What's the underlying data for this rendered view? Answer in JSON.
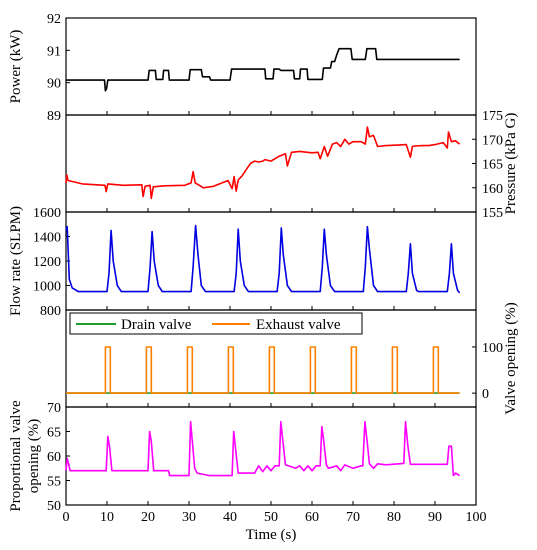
{
  "chart_data": {
    "type": "line",
    "xlabel": "Time (s)",
    "x_ticks": [
      "0",
      "10",
      "20",
      "30",
      "40",
      "50",
      "60",
      "70",
      "80",
      "90",
      "100"
    ],
    "xlim": [
      0,
      100
    ],
    "panels": [
      {
        "id": "power",
        "ylabel": "Power  (kW)",
        "y_axis_side": "left",
        "ylim": [
          89,
          92
        ],
        "y_ticks": [
          "89",
          "90",
          "91",
          "92"
        ],
        "series": [
          {
            "color": "#000000",
            "x": [
              0,
              9.4,
              9.6,
              9.9,
              10.2,
              20,
              20.3,
              21.8,
              22,
              23.6,
              23.8,
              25,
              25.2,
              30,
              30.3,
              33,
              33.3,
              35,
              35.3,
              40,
              40.4,
              46,
              46.3,
              48.5,
              48.7,
              50.5,
              50.7,
              52,
              52.4,
              55.5,
              55.7,
              57,
              57.2,
              58.8,
              59,
              61,
              61.2,
              62.5,
              62.8,
              64.5,
              64.8,
              65.5,
              66,
              66.6,
              67,
              69.5,
              69.8,
              73,
              73.4,
              75.5,
              75.8,
              80,
              85,
              90,
              96
            ],
            "y": [
              90.08,
              90.08,
              89.75,
              89.82,
              90.08,
              90.08,
              90.38,
              90.38,
              90.1,
              90.1,
              90.38,
              90.38,
              90.08,
              90.08,
              90.4,
              90.4,
              90.18,
              90.18,
              90.08,
              90.08,
              90.42,
              90.42,
              90.42,
              90.42,
              90.12,
              90.12,
              90.42,
              90.42,
              90.38,
              90.38,
              90.12,
              90.12,
              90.42,
              90.42,
              90.1,
              90.1,
              90.1,
              90.1,
              90.45,
              90.45,
              90.65,
              90.65,
              90.85,
              91.05,
              91.05,
              91.05,
              90.72,
              90.72,
              91.05,
              91.05,
              90.72,
              90.72,
              90.72,
              90.72,
              90.72
            ]
          }
        ]
      },
      {
        "id": "pressure",
        "ylabel": "Pressure  (kPa G)",
        "y_axis_side": "right",
        "ylim": [
          155,
          175
        ],
        "y_ticks": [
          "155",
          "160",
          "165",
          "170",
          "175"
        ],
        "series": [
          {
            "color": "#ff0000",
            "x": [
              0,
              0.2,
              0.5,
              4,
              9.5,
              9.8,
              10.2,
              14,
              18.5,
              18.8,
              19.3,
              20.5,
              20.8,
              21.3,
              24,
              29,
              30.5,
              31,
              31.5,
              32.5,
              33.5,
              36,
              39.5,
              40.5,
              41,
              41.5,
              42,
              43,
              44,
              45,
              46,
              47,
              48,
              48.5,
              50,
              52,
              53.5,
              54,
              55,
              57,
              60,
              61.5,
              62,
              63,
              63.8,
              65,
              66,
              67,
              68,
              69,
              70,
              72,
              73,
              73.5,
              74,
              75,
              76,
              78,
              81,
              83,
              84,
              84.5,
              85,
              87,
              88.5,
              90,
              92,
              93,
              93.3,
              94,
              95,
              96
            ],
            "y": [
              161,
              162.6,
              161.5,
              160.8,
              160.5,
              159.2,
              160.8,
              160.5,
              160.6,
              158.2,
              160.3,
              160.5,
              157.8,
              160.2,
              160.4,
              160.5,
              161,
              163.3,
              161,
              160.5,
              160,
              160.3,
              161.5,
              159.8,
              162.3,
              159.3,
              161.6,
              162.5,
              163.8,
              165,
              165.5,
              165.3,
              165.5,
              165.8,
              165.5,
              166.5,
              167,
              164.5,
              167.3,
              167.5,
              167.2,
              167.3,
              166,
              168.5,
              166.5,
              169,
              169.3,
              168.5,
              170,
              169,
              169.5,
              169.5,
              169,
              172.5,
              170.5,
              170.8,
              168.5,
              168.7,
              168.8,
              168.9,
              166.3,
              168.5,
              168.6,
              168.7,
              168.7,
              168.9,
              169.3,
              168.2,
              171.5,
              169.5,
              169.7,
              169
            ]
          }
        ]
      },
      {
        "id": "flow",
        "ylabel": "Flow rate  (SLPM)",
        "y_axis_side": "left",
        "ylim": [
          800,
          1600
        ],
        "y_ticks": [
          "800",
          "1000",
          "1200",
          "1400",
          "1600"
        ],
        "series": [
          {
            "color": "#0000e0",
            "x": [
              0,
              0.3,
              0.8,
              1.5,
              3,
              10,
              10.5,
              11,
              11.5,
              12.5,
              13.5,
              20,
              20.5,
              21,
              21.5,
              22.5,
              23.5,
              30.5,
              31,
              31.6,
              32.2,
              33,
              34,
              41,
              41.5,
              42,
              42.5,
              43.5,
              44.5,
              51.5,
              52,
              52.5,
              53,
              54,
              55,
              62,
              62.5,
              63,
              63.5,
              64.5,
              65.5,
              72.5,
              73,
              73.5,
              74,
              75,
              76,
              83,
              83.5,
              84,
              84.5,
              85.5,
              86,
              93,
              93.5,
              94,
              94.5,
              95.5,
              96
            ],
            "y": [
              1450,
              1480,
              1050,
              980,
              950,
              950,
              1100,
              1450,
              1200,
              1000,
              950,
              950,
              1150,
              1440,
              1200,
              1000,
              950,
              950,
              1150,
              1490,
              1250,
              1000,
              950,
              950,
              1100,
              1460,
              1200,
              1000,
              950,
              950,
              1100,
              1470,
              1250,
              1000,
              950,
              950,
              1150,
              1460,
              1250,
              1000,
              950,
              950,
              1150,
              1480,
              1300,
              1000,
              950,
              950,
              1100,
              1340,
              1100,
              960,
              950,
              950,
              1100,
              1340,
              1100,
              960,
              940
            ]
          }
        ]
      },
      {
        "id": "valve",
        "ylabel": "Valve opening  (%)",
        "y_axis_side": "right",
        "ylim": [
          -30,
          180
        ],
        "y_ticks": [
          "0",
          "100"
        ],
        "legend": [
          "Drain valve",
          "Exhaust valve"
        ],
        "legend_position": "top",
        "series": [
          {
            "name": "Drain valve",
            "color": "#1f9d2a",
            "x": [
              0,
              96
            ],
            "y": [
              0,
              0
            ]
          },
          {
            "name": "Exhaust valve",
            "color": "#ff8000",
            "x": [
              0,
              9.6,
              9.6,
              10.8,
              10.8,
              19.6,
              19.6,
              20.8,
              20.8,
              29.6,
              29.6,
              30.8,
              30.8,
              39.6,
              39.6,
              40.8,
              40.8,
              49.6,
              49.6,
              50.8,
              50.8,
              59.6,
              59.6,
              60.8,
              60.8,
              69.6,
              69.6,
              70.8,
              70.8,
              79.6,
              79.6,
              80.8,
              80.8,
              89.6,
              89.6,
              90.8,
              90.8,
              96
            ],
            "y": [
              0,
              0,
              100,
              100,
              0,
              0,
              100,
              100,
              0,
              0,
              100,
              100,
              0,
              0,
              100,
              100,
              0,
              0,
              100,
              100,
              0,
              0,
              100,
              100,
              0,
              0,
              100,
              100,
              0,
              0,
              100,
              100,
              0,
              0,
              100,
              100,
              0,
              0
            ]
          }
        ]
      },
      {
        "id": "prop",
        "ylabel": "Proportional valve opening  (%)",
        "y_axis_side": "left",
        "ylim": [
          50,
          70
        ],
        "y_ticks": [
          "50",
          "55",
          "60",
          "65",
          "70"
        ],
        "series": [
          {
            "color": "#ff00ff",
            "x": [
              0,
              0.3,
              0.6,
              1,
              9.8,
              10.2,
              10.6,
              11.2,
              20,
              20.4,
              20.8,
              21.4,
              25,
              25.3,
              30,
              30.4,
              30.8,
              31.4,
              32,
              35,
              40.5,
              40.9,
              41.3,
              42,
              46,
              47,
              48,
              49,
              50,
              51,
              52,
              52.4,
              52.9,
              53.5,
              56,
              57,
              58,
              59,
              60,
              61,
              62,
              62.4,
              62.8,
              63.5,
              64,
              66,
              67,
              68,
              70,
              72,
              72.4,
              72.9,
              73.5,
              74,
              75,
              76,
              78,
              82.4,
              82.8,
              83.4,
              84,
              93,
              93.4,
              94,
              94.5,
              95,
              96
            ],
            "y": [
              57,
              59.5,
              58.5,
              57,
              57,
              64,
              62,
              57,
              57,
              65,
              63,
              57,
              57,
              56,
              56,
              67,
              63,
              57.5,
              56.5,
              56,
              56,
              65,
              62,
              56.5,
              56.5,
              58,
              56.8,
              58,
              57,
              58,
              58,
              67,
              63,
              58.2,
              57.5,
              58,
              57,
              58,
              57,
              58,
              58,
              66,
              63.5,
              58.2,
              57.5,
              58,
              57,
              58.2,
              57.5,
              58,
              58,
              67,
              62.5,
              58.4,
              57.5,
              58.4,
              58.2,
              58.5,
              67,
              62,
              58.3,
              58.3,
              62,
              62,
              56,
              56.5,
              56
            ]
          }
        ]
      }
    ]
  }
}
